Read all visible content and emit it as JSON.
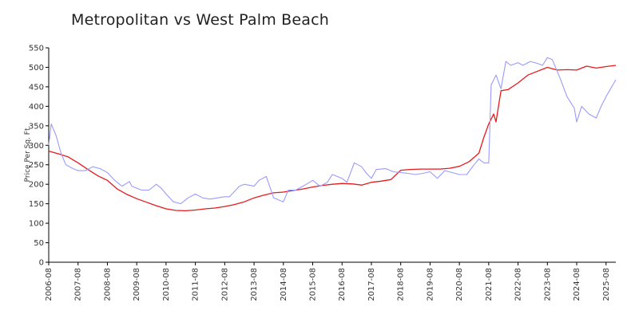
{
  "chart_data": {
    "type": "line",
    "title": "Metropolitan vs West Palm Beach",
    "xlabel": "",
    "ylabel": "Price Per Sq. Ft.",
    "ylim": [
      0,
      550
    ],
    "yticks": [
      0,
      50,
      100,
      150,
      200,
      250,
      300,
      350,
      400,
      450,
      500,
      550
    ],
    "xlim": [
      "2006-08",
      "2025-12"
    ],
    "xticks": [
      "2006-08",
      "2007-08",
      "2008-08",
      "2009-08",
      "2010-08",
      "2011-08",
      "2012-08",
      "2013-08",
      "2014-08",
      "2015-08",
      "2016-08",
      "2017-08",
      "2018-08",
      "2019-08",
      "2020-08",
      "2021-08",
      "2022-08",
      "2023-08",
      "2024-08",
      "2025-08"
    ],
    "grid": false,
    "legend": "none",
    "series": [
      {
        "color": "#e8191b",
        "x": [
          "2006-08",
          "2006-12",
          "2007-04",
          "2007-08",
          "2007-12",
          "2008-04",
          "2008-08",
          "2008-12",
          "2009-04",
          "2009-08",
          "2009-12",
          "2010-04",
          "2010-08",
          "2010-12",
          "2011-04",
          "2011-08",
          "2011-12",
          "2012-04",
          "2012-08",
          "2012-12",
          "2013-04",
          "2013-08",
          "2013-12",
          "2014-04",
          "2014-08",
          "2014-12",
          "2015-04",
          "2015-08",
          "2015-12",
          "2016-04",
          "2016-08",
          "2016-12",
          "2017-04",
          "2017-08",
          "2017-12",
          "2018-04",
          "2018-08",
          "2018-12",
          "2019-04",
          "2019-08",
          "2019-12",
          "2020-04",
          "2020-08",
          "2020-12",
          "2021-04",
          "2021-06",
          "2021-08",
          "2021-10",
          "2021-11",
          "2022-01",
          "2022-04",
          "2022-08",
          "2022-12",
          "2023-04",
          "2023-08",
          "2023-12",
          "2024-04",
          "2024-08",
          "2024-12",
          "2025-04",
          "2025-08",
          "2025-12"
        ],
        "values": [
          285,
          278,
          270,
          255,
          238,
          222,
          210,
          188,
          174,
          163,
          154,
          145,
          137,
          133,
          132,
          134,
          137,
          139,
          143,
          148,
          155,
          165,
          172,
          178,
          180,
          184,
          188,
          193,
          197,
          200,
          202,
          201,
          198,
          205,
          208,
          212,
          236,
          238,
          239,
          239,
          239,
          241,
          246,
          258,
          280,
          320,
          355,
          380,
          360,
          440,
          443,
          460,
          480,
          490,
          500,
          493,
          494,
          493,
          503,
          498,
          502,
          505
        ]
      },
      {
        "color": "#9a9aff",
        "x": [
          "2006-08",
          "2006-09",
          "2006-11",
          "2007-01",
          "2007-03",
          "2007-06",
          "2007-08",
          "2007-11",
          "2008-02",
          "2008-05",
          "2008-08",
          "2008-11",
          "2009-02",
          "2009-05",
          "2009-06",
          "2009-08",
          "2009-10",
          "2010-01",
          "2010-04",
          "2010-06",
          "2010-08",
          "2010-11",
          "2011-02",
          "2011-05",
          "2011-08",
          "2011-11",
          "2012-02",
          "2012-05",
          "2012-08",
          "2012-10",
          "2013-02",
          "2013-04",
          "2013-08",
          "2013-10",
          "2014-01",
          "2014-04",
          "2014-08",
          "2014-10",
          "2015-01",
          "2015-04",
          "2015-08",
          "2015-11",
          "2016-02",
          "2016-04",
          "2016-08",
          "2016-10",
          "2017-01",
          "2017-04",
          "2017-06",
          "2017-08",
          "2017-10",
          "2018-02",
          "2018-05",
          "2018-08",
          "2018-11",
          "2019-02",
          "2019-05",
          "2019-08",
          "2019-11",
          "2020-02",
          "2020-05",
          "2020-08",
          "2020-11",
          "2021-02",
          "2021-04",
          "2021-06",
          "2021-08",
          "2021-09",
          "2021-11",
          "2022-01",
          "2022-03",
          "2022-05",
          "2022-08",
          "2022-10",
          "2023-01",
          "2023-04",
          "2023-06",
          "2023-08",
          "2023-10",
          "2024-01",
          "2024-04",
          "2024-07",
          "2024-08",
          "2024-10",
          "2025-01",
          "2025-04",
          "2025-06",
          "2025-08",
          "2025-12"
        ],
        "values": [
          300,
          355,
          325,
          280,
          250,
          240,
          235,
          235,
          245,
          240,
          230,
          210,
          195,
          207,
          195,
          190,
          185,
          185,
          200,
          190,
          175,
          155,
          150,
          165,
          175,
          165,
          162,
          165,
          168,
          168,
          195,
          200,
          195,
          210,
          220,
          165,
          155,
          185,
          185,
          195,
          210,
          195,
          205,
          225,
          215,
          205,
          255,
          245,
          228,
          215,
          238,
          240,
          232,
          230,
          228,
          225,
          228,
          232,
          215,
          235,
          230,
          225,
          225,
          250,
          265,
          255,
          255,
          455,
          480,
          445,
          515,
          505,
          512,
          505,
          515,
          510,
          505,
          525,
          520,
          475,
          425,
          395,
          360,
          400,
          380,
          370,
          400,
          425,
          468
        ]
      }
    ]
  }
}
